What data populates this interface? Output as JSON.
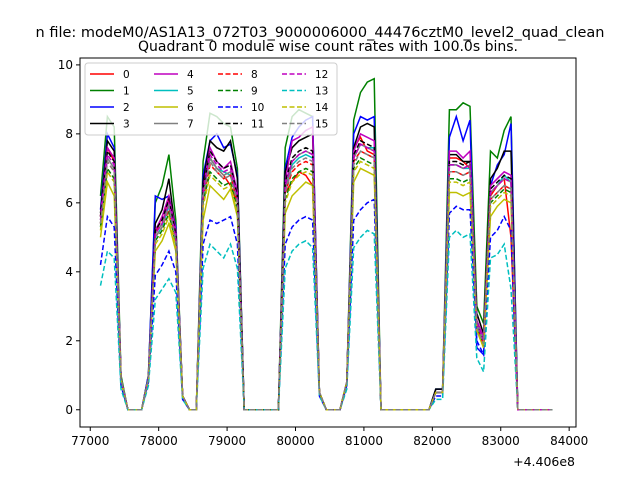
{
  "figure": {
    "suptitle": "n file: modeM0/AS1A13_072T03_9000006000_44476cztM0_level2_quad_clean",
    "axis_offset": "+4.406e8"
  },
  "chart_data": {
    "type": "line",
    "title": "Quadrant 0 module wise count rates with 100.0s bins.",
    "xlabel": "",
    "ylabel": "",
    "xlim": [
      76850,
      84100
    ],
    "ylim": [
      -0.5,
      10.2
    ],
    "x_offset_label": "+4.406e8",
    "xticks": [
      77000,
      78000,
      79000,
      80000,
      81000,
      82000,
      83000,
      84000
    ],
    "xtick_labels": [
      "77000",
      "78000",
      "79000",
      "80000",
      "81000",
      "82000",
      "83000",
      "84000"
    ],
    "yticks": [
      0,
      2,
      4,
      6,
      8,
      10
    ],
    "ytick_labels": [
      "0",
      "2",
      "4",
      "6",
      "8",
      "10"
    ],
    "grid": false,
    "legend": {
      "placement": "top-left",
      "columns": 4
    },
    "x": [
      77150,
      77250,
      77350,
      77450,
      77550,
      77650,
      77750,
      77850,
      77950,
      78050,
      78150,
      78250,
      78350,
      78450,
      78550,
      78650,
      78750,
      78850,
      78950,
      79050,
      79150,
      79250,
      79350,
      79450,
      79550,
      79650,
      79750,
      79850,
      79950,
      80050,
      80150,
      80250,
      80350,
      80450,
      80550,
      80650,
      80750,
      80850,
      80950,
      81050,
      81150,
      81250,
      81350,
      81450,
      81550,
      81650,
      81750,
      81850,
      81950,
      82050,
      82150,
      82250,
      82350,
      82450,
      82550,
      82650,
      82750,
      82850,
      82950,
      83050,
      83150,
      83250,
      83350,
      83450,
      83550,
      83650,
      83750
    ],
    "series": [
      {
        "name": "0",
        "color": "#ff0000",
        "dash": "solid",
        "values": [
          5.6,
          7.6,
          7.2,
          0.9,
          0,
          0,
          0,
          0.9,
          5.1,
          5.6,
          6.1,
          5.2,
          0.4,
          0,
          0,
          6.2,
          7.3,
          7.0,
          6.8,
          6.5,
          6.0,
          0,
          0,
          0,
          0,
          0,
          0,
          6.3,
          6.6,
          6.9,
          6.8,
          6.5,
          0.5,
          0,
          0,
          0,
          0.8,
          7.6,
          7.9,
          7.5,
          7.4,
          0,
          0,
          0,
          0,
          0,
          0,
          0,
          0,
          0.5,
          0.5,
          7.3,
          7.3,
          7.2,
          7.0,
          2.5,
          2.0,
          6.2,
          6.5,
          6.7,
          5.0,
          0,
          0,
          0,
          0,
          0,
          0
        ]
      },
      {
        "name": "1",
        "color": "#008000",
        "dash": "solid",
        "values": [
          6.2,
          8.5,
          8.2,
          1.0,
          0,
          0,
          0,
          1.0,
          6.0,
          6.5,
          7.4,
          5.5,
          0.4,
          0,
          0,
          7.2,
          8.6,
          8.5,
          8.3,
          8.2,
          7.0,
          0,
          0,
          0,
          0,
          0,
          0,
          7.6,
          8.5,
          8.7,
          8.6,
          8.5,
          0.5,
          0,
          0,
          0,
          0.8,
          8.4,
          9.2,
          9.5,
          9.6,
          0,
          0,
          0,
          0,
          0,
          0,
          0,
          0,
          0.6,
          0.6,
          8.7,
          8.7,
          8.9,
          8.8,
          3.0,
          2.5,
          7.5,
          7.3,
          8.1,
          8.5,
          0,
          0,
          0,
          0,
          0,
          0
        ]
      },
      {
        "name": "2",
        "color": "#0000ff",
        "dash": "solid",
        "values": [
          5.8,
          8.0,
          7.6,
          0.9,
          0,
          0,
          0,
          1.0,
          6.2,
          6.1,
          6.2,
          5.3,
          0.4,
          0,
          0,
          6.8,
          7.8,
          8.0,
          7.6,
          7.7,
          6.8,
          0,
          0,
          0,
          0,
          0,
          0,
          7.0,
          7.9,
          8.2,
          8.4,
          8.5,
          0.5,
          0,
          0,
          0,
          0.8,
          8.0,
          8.5,
          8.4,
          8.5,
          0,
          0,
          0,
          0,
          0,
          0,
          0,
          0,
          0.6,
          0.6,
          7.9,
          8.5,
          7.8,
          8.4,
          1.8,
          1.6,
          6.5,
          7.1,
          7.4,
          8.3,
          0,
          0,
          0,
          0,
          0,
          0
        ]
      },
      {
        "name": "3",
        "color": "#000000",
        "dash": "solid",
        "values": [
          5.7,
          7.8,
          7.5,
          0.9,
          0,
          0,
          0,
          0.9,
          5.4,
          5.8,
          6.7,
          5.1,
          0.4,
          0,
          0,
          6.6,
          7.8,
          7.6,
          7.5,
          7.8,
          6.7,
          0,
          0,
          0,
          0,
          0,
          0,
          6.9,
          7.6,
          7.8,
          7.9,
          8.0,
          0.5,
          0,
          0,
          0,
          0.8,
          7.6,
          8.2,
          8.3,
          8.2,
          0,
          0,
          0,
          0,
          0,
          0,
          0,
          0,
          0.6,
          0.6,
          7.4,
          7.4,
          7.2,
          7.2,
          2.8,
          2.2,
          6.7,
          7.0,
          7.5,
          7.5,
          0,
          0,
          0,
          0,
          0,
          0
        ]
      },
      {
        "name": "4",
        "color": "#bf00bf",
        "dash": "solid",
        "values": [
          5.6,
          7.6,
          7.3,
          0.9,
          0,
          0,
          0,
          0.9,
          5.2,
          5.6,
          6.2,
          5.2,
          0.4,
          0,
          0,
          6.4,
          7.6,
          7.2,
          7.0,
          7.2,
          6.3,
          0,
          0,
          0,
          0,
          0,
          0,
          6.6,
          7.8,
          7.9,
          8.1,
          8.2,
          0.5,
          0,
          0,
          0,
          0.8,
          7.5,
          8.0,
          7.9,
          7.8,
          0,
          0,
          0,
          0,
          0,
          0,
          0,
          0,
          0.5,
          0.5,
          7.5,
          7.5,
          7.3,
          7.5,
          2.6,
          2.1,
          6.5,
          6.7,
          6.9,
          6.8,
          0,
          0,
          0,
          0,
          0,
          0
        ]
      },
      {
        "name": "5",
        "color": "#00bfbf",
        "dash": "solid",
        "values": [
          5.4,
          7.3,
          7.0,
          0.9,
          0,
          0,
          0,
          0.9,
          5.0,
          5.3,
          5.9,
          5.0,
          0.4,
          0,
          0,
          6.2,
          7.3,
          7.0,
          6.9,
          6.8,
          6.1,
          0,
          0,
          0,
          0,
          0,
          0,
          6.4,
          7.1,
          7.3,
          7.4,
          7.3,
          0.5,
          0,
          0,
          0,
          0.8,
          7.3,
          7.7,
          7.6,
          7.6,
          0,
          0,
          0,
          0,
          0,
          0,
          0,
          0,
          0.5,
          0.5,
          7.1,
          7.1,
          7.0,
          7.0,
          2.5,
          2.0,
          6.3,
          6.5,
          6.8,
          6.6,
          0,
          0,
          0,
          0,
          0,
          0
        ]
      },
      {
        "name": "6",
        "color": "#bfbf00",
        "dash": "solid",
        "values": [
          5.0,
          6.6,
          6.2,
          0.8,
          0,
          0,
          0,
          0.9,
          4.6,
          4.9,
          5.4,
          4.6,
          0.4,
          0,
          0,
          5.5,
          6.5,
          6.3,
          6.1,
          6.4,
          5.6,
          0,
          0,
          0,
          0,
          0,
          0,
          5.7,
          6.2,
          6.4,
          6.6,
          6.5,
          0.5,
          0,
          0,
          0,
          0.8,
          6.6,
          7.0,
          6.9,
          6.8,
          0,
          0,
          0,
          0,
          0,
          0,
          0,
          0,
          0.5,
          0.5,
          6.3,
          6.3,
          6.2,
          6.3,
          2.3,
          1.8,
          5.6,
          5.9,
          6.1,
          6.0,
          0,
          0,
          0,
          0,
          0,
          0
        ]
      },
      {
        "name": "7",
        "color": "#808080",
        "dash": "solid",
        "values": [
          5.5,
          7.3,
          7.0,
          0.9,
          0,
          0,
          0,
          0.9,
          5.1,
          5.4,
          6.0,
          5.0,
          0.4,
          0,
          0,
          6.3,
          7.3,
          7.0,
          6.8,
          6.9,
          6.1,
          0,
          0,
          0,
          0,
          0,
          0,
          6.4,
          7.2,
          7.4,
          7.5,
          7.4,
          0.5,
          0,
          0,
          0,
          0.8,
          7.3,
          7.7,
          7.6,
          7.5,
          0,
          0,
          0,
          0,
          0,
          0,
          0,
          0,
          0.5,
          0.5,
          7.1,
          7.1,
          7.0,
          7.1,
          2.5,
          2.0,
          6.3,
          6.5,
          6.7,
          6.6,
          0,
          0,
          0,
          0,
          0,
          0
        ]
      },
      {
        "name": "8",
        "color": "#ff0000",
        "dash": "dashed",
        "values": [
          5.4,
          7.2,
          6.9,
          0.9,
          0,
          0,
          0,
          0.9,
          5.0,
          5.3,
          5.8,
          4.9,
          0.4,
          0,
          0,
          6.1,
          7.1,
          6.9,
          6.7,
          6.8,
          6.0,
          0,
          0,
          0,
          0,
          0,
          0,
          6.3,
          6.9,
          7.1,
          7.2,
          7.1,
          0.5,
          0,
          0,
          0,
          0.8,
          7.2,
          7.5,
          7.4,
          7.3,
          0,
          0,
          0,
          0,
          0,
          0,
          0,
          0,
          0.5,
          0.5,
          6.9,
          6.9,
          6.8,
          6.9,
          2.4,
          1.9,
          6.1,
          6.3,
          6.5,
          6.4,
          0,
          0,
          0,
          0,
          0,
          0
        ]
      },
      {
        "name": "9",
        "color": "#008000",
        "dash": "dashed",
        "values": [
          5.3,
          7.0,
          6.7,
          0.9,
          0,
          0,
          0,
          0.9,
          4.9,
          5.2,
          5.7,
          4.8,
          0.4,
          0,
          0,
          6.0,
          6.9,
          6.7,
          6.5,
          6.6,
          5.8,
          0,
          0,
          0,
          0,
          0,
          0,
          6.1,
          6.7,
          6.9,
          7.0,
          6.9,
          0.5,
          0,
          0,
          0,
          0.8,
          7.0,
          7.3,
          7.2,
          7.1,
          0,
          0,
          0,
          0,
          0,
          0,
          0,
          0,
          0.5,
          0.5,
          6.7,
          6.7,
          6.6,
          6.7,
          2.4,
          1.9,
          6.0,
          6.2,
          6.4,
          6.3,
          0,
          0,
          0,
          0,
          0,
          0
        ]
      },
      {
        "name": "10",
        "color": "#0000ff",
        "dash": "dashed",
        "values": [
          4.2,
          5.6,
          5.3,
          0.7,
          0,
          0,
          0,
          0.8,
          3.9,
          4.2,
          4.6,
          4.0,
          0.3,
          0,
          0,
          4.8,
          5.5,
          5.4,
          5.5,
          5.6,
          4.8,
          0,
          0,
          0,
          0,
          0,
          0,
          4.8,
          5.3,
          5.5,
          5.6,
          5.5,
          0.4,
          0,
          0,
          0,
          0.7,
          5.5,
          5.8,
          6.0,
          6.1,
          0,
          0,
          0,
          0,
          0,
          0,
          0,
          0,
          0.4,
          0.4,
          5.7,
          5.9,
          5.8,
          5.8,
          2.0,
          1.6,
          5.0,
          5.2,
          5.6,
          5.2,
          0,
          0,
          0,
          0,
          0,
          0
        ]
      },
      {
        "name": "11",
        "color": "#000000",
        "dash": "dashed",
        "values": [
          5.6,
          7.5,
          7.2,
          0.9,
          0,
          0,
          0,
          0.9,
          5.2,
          5.5,
          6.1,
          5.1,
          0.4,
          0,
          0,
          6.4,
          7.5,
          7.2,
          7.0,
          7.1,
          6.2,
          0,
          0,
          0,
          0,
          0,
          0,
          6.6,
          7.3,
          7.5,
          7.6,
          7.5,
          0.5,
          0,
          0,
          0,
          0.8,
          7.4,
          7.8,
          7.7,
          7.6,
          0,
          0,
          0,
          0,
          0,
          0,
          0,
          0,
          0.5,
          0.5,
          7.2,
          7.2,
          7.1,
          7.2,
          2.5,
          2.0,
          6.4,
          6.6,
          6.8,
          6.7,
          0,
          0,
          0,
          0,
          0,
          0
        ]
      },
      {
        "name": "12",
        "color": "#bf00bf",
        "dash": "dashed",
        "values": [
          5.5,
          7.4,
          7.1,
          0.9,
          0,
          0,
          0,
          0.9,
          5.1,
          5.4,
          6.0,
          5.0,
          0.4,
          0,
          0,
          6.3,
          7.4,
          7.1,
          6.9,
          7.0,
          6.1,
          0,
          0,
          0,
          0,
          0,
          0,
          6.5,
          7.2,
          7.4,
          7.5,
          7.4,
          0.5,
          0,
          0,
          0,
          0.8,
          7.3,
          7.7,
          7.6,
          7.5,
          0,
          0,
          0,
          0,
          0,
          0,
          0,
          0,
          0.5,
          0.5,
          7.1,
          7.1,
          7.0,
          7.1,
          2.5,
          2.0,
          6.3,
          6.5,
          6.7,
          6.6,
          0,
          0,
          0,
          0,
          0,
          0
        ]
      },
      {
        "name": "13",
        "color": "#00bfbf",
        "dash": "dashed",
        "values": [
          3.6,
          4.6,
          4.4,
          0.6,
          0,
          0,
          0,
          0.7,
          3.2,
          3.5,
          3.8,
          3.4,
          0.3,
          0,
          0,
          4.1,
          4.8,
          4.6,
          4.4,
          4.8,
          4.1,
          0,
          0,
          0,
          0,
          0,
          0,
          4.1,
          4.6,
          4.8,
          4.9,
          4.7,
          0.4,
          0,
          0,
          0,
          0.6,
          4.7,
          5.0,
          5.2,
          5.1,
          0,
          0,
          0,
          0,
          0,
          0,
          0,
          0,
          0.3,
          0.3,
          5.0,
          5.2,
          5.0,
          5.1,
          1.5,
          1.1,
          4.4,
          4.5,
          4.8,
          3.5,
          0,
          0,
          0,
          0,
          0,
          0
        ]
      },
      {
        "name": "14",
        "color": "#bfbf00",
        "dash": "dashed",
        "values": [
          5.2,
          6.9,
          6.6,
          0.9,
          0,
          0,
          0,
          0.9,
          4.8,
          5.1,
          5.6,
          4.7,
          0.4,
          0,
          0,
          5.9,
          6.8,
          6.6,
          6.4,
          6.5,
          5.7,
          0,
          0,
          0,
          0,
          0,
          0,
          6.0,
          6.6,
          6.8,
          6.9,
          6.8,
          0.5,
          0,
          0,
          0,
          0.8,
          6.9,
          7.2,
          7.1,
          7.0,
          0,
          0,
          0,
          0,
          0,
          0,
          0,
          0,
          0.5,
          0.5,
          6.6,
          6.6,
          6.5,
          6.6,
          2.3,
          1.8,
          5.9,
          6.1,
          6.3,
          6.2,
          0,
          0,
          0,
          0,
          0,
          0
        ]
      },
      {
        "name": "15",
        "color": "#808080",
        "dash": "dashed",
        "values": [
          5.4,
          7.2,
          6.9,
          0.9,
          0,
          0,
          0,
          0.9,
          5.0,
          5.3,
          5.9,
          4.9,
          0.4,
          0,
          0,
          6.2,
          7.2,
          6.9,
          6.7,
          6.8,
          6.0,
          0,
          0,
          0,
          0,
          0,
          0,
          6.3,
          7.0,
          7.2,
          7.3,
          7.2,
          0.5,
          0,
          0,
          0,
          0.8,
          7.1,
          7.5,
          7.4,
          7.3,
          0,
          0,
          0,
          0,
          0,
          0,
          0,
          0,
          0.5,
          0.5,
          6.9,
          6.9,
          6.8,
          6.9,
          2.4,
          1.9,
          6.1,
          6.3,
          6.5,
          6.4,
          0,
          0,
          0,
          0,
          0,
          0
        ]
      }
    ]
  }
}
